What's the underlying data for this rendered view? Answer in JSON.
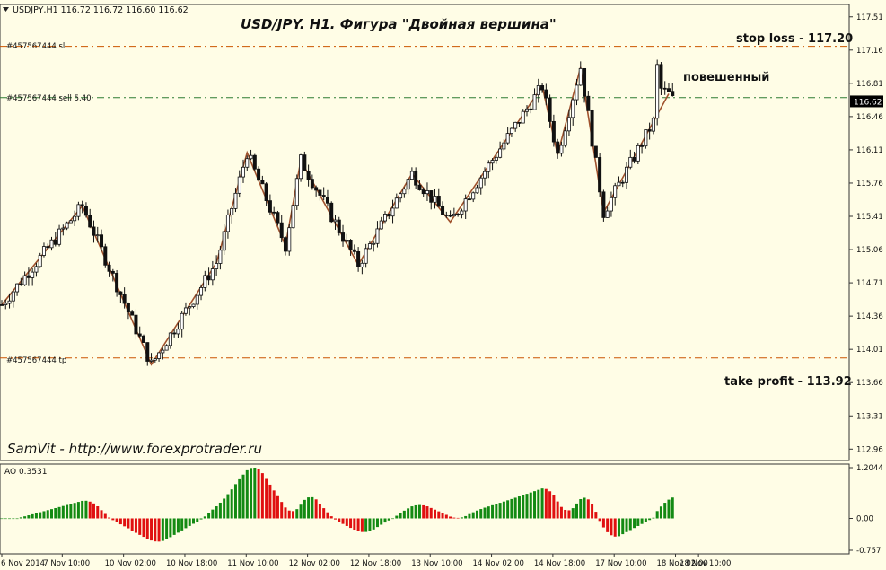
{
  "header": {
    "symbol_line": "USDJPY,H1  116.72 116.72 116.60 116.62",
    "title": "USD/JPY. H1. Фигура \"Двойная вершина\""
  },
  "annotations": {
    "stop_loss": "stop loss - 117.20",
    "take_profit": "take profit - 113.92",
    "hanged": "повешенный",
    "watermark": "SamVit - http://www.forexprotrader.ru"
  },
  "order_lines": {
    "sl_label": "#457567444 sl",
    "sell_label": "#457567444 sell 5.40",
    "tp_label": "#457567444 tp",
    "sl": 117.2,
    "sell": 116.66,
    "tp": 113.92
  },
  "price_axis": {
    "ticks": [
      "117.51",
      "117.16",
      "116.81",
      "116.46",
      "116.11",
      "115.76",
      "115.41",
      "115.06",
      "114.71",
      "114.36",
      "114.01",
      "113.66",
      "113.31",
      "112.96"
    ],
    "current": "116.62",
    "current_value": 116.62
  },
  "time_axis": {
    "labels": [
      "6 Nov 2014",
      "7 Nov 10:00",
      "10 Nov 02:00",
      "10 Nov 18:00",
      "11 Nov 10:00",
      "12 Nov 02:00",
      "12 Nov 18:00",
      "13 Nov 10:00",
      "14 Nov 02:00",
      "14 Nov 18:00",
      "17 Nov 10:00",
      "18 Nov 02:00",
      "18 Nov 10:00"
    ]
  },
  "ao_panel": {
    "label": "AO 0.3531",
    "ticks": [
      "1.2044",
      "0.00",
      "-0.757"
    ]
  },
  "colors": {
    "background": "#fffde6",
    "candle": "#111111",
    "zigzag": "#a0522d",
    "order_line": "#cc5500",
    "sell_line": "#2e7d32",
    "ao_up": "#138a13",
    "ao_down": "#e01010",
    "current_price_bg": "#000000",
    "current_price_fg": "#ffffff"
  },
  "chart_data": {
    "type": "candlestick",
    "symbol": "USDJPY",
    "timeframe": "H1",
    "title": "USD/JPY. H1. Фигура \"Двойная вершина\"",
    "ylim": [
      112.84,
      117.64
    ],
    "x_categories": [
      "6 Nov 2014",
      "7 Nov 10:00",
      "10 Nov 02:00",
      "10 Nov 18:00",
      "11 Nov 10:00",
      "12 Nov 02:00",
      "12 Nov 18:00",
      "13 Nov 10:00",
      "14 Nov 02:00",
      "14 Nov 18:00",
      "17 Nov 10:00",
      "18 Nov 02:00",
      "18 Nov 10:00"
    ],
    "zigzag": [
      {
        "bar": 0,
        "price": 114.48
      },
      {
        "bar": 21,
        "price": 115.52
      },
      {
        "bar": 39,
        "price": 113.85
      },
      {
        "bar": 56,
        "price": 114.92
      },
      {
        "bar": 64,
        "price": 116.08
      },
      {
        "bar": 74,
        "price": 115.1
      },
      {
        "bar": 78,
        "price": 116.0
      },
      {
        "bar": 93,
        "price": 114.9
      },
      {
        "bar": 107,
        "price": 115.86
      },
      {
        "bar": 117,
        "price": 115.35
      },
      {
        "bar": 141,
        "price": 116.78
      },
      {
        "bar": 145,
        "price": 116.06
      },
      {
        "bar": 151,
        "price": 116.98
      },
      {
        "bar": 157,
        "price": 115.45
      },
      {
        "bar": 174,
        "price": 116.7
      }
    ],
    "ao_range": [
      -0.757,
      1.2044
    ],
    "ao_last": 0.3531
  }
}
